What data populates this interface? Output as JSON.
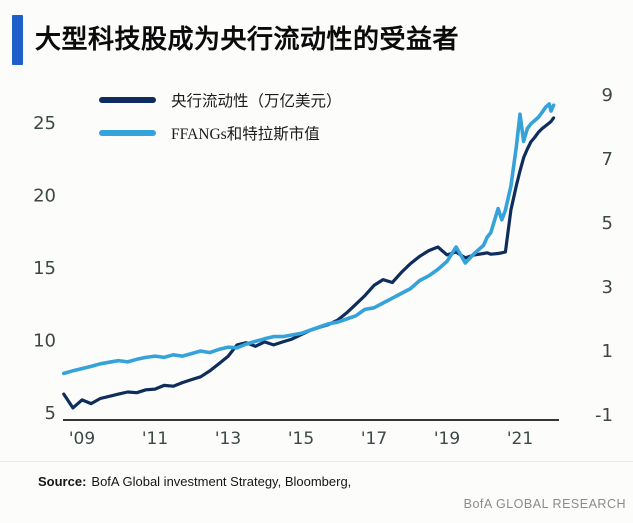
{
  "page": {
    "background": "#fcfcfb"
  },
  "title": {
    "text": "大型科技股成为央行流动性的受益者",
    "accent_color": "#1e5fc9"
  },
  "chart_data": {
    "type": "line",
    "title": "大型科技股成为央行流动性的受益者",
    "grid": false,
    "legend_position": "top-left",
    "axis_text_color": "#3c4847",
    "axis_line_color": "#1a1a1a",
    "x": [
      2008.5,
      2008.75,
      2009.0,
      2009.25,
      2009.5,
      2009.75,
      2010.0,
      2010.25,
      2010.5,
      2010.75,
      2011.0,
      2011.25,
      2011.5,
      2011.75,
      2012.0,
      2012.25,
      2012.5,
      2012.75,
      2013.0,
      2013.25,
      2013.5,
      2013.75,
      2014.0,
      2014.25,
      2014.5,
      2014.75,
      2015.0,
      2015.25,
      2015.5,
      2015.75,
      2016.0,
      2016.25,
      2016.5,
      2016.75,
      2017.0,
      2017.25,
      2017.5,
      2017.75,
      2018.0,
      2018.25,
      2018.5,
      2018.75,
      2019.0,
      2019.25,
      2019.5,
      2019.75,
      2020.0,
      2020.1,
      2020.2,
      2020.4,
      2020.5,
      2020.6,
      2020.75,
      2020.9,
      2021.0,
      2021.1,
      2021.2,
      2021.3,
      2021.4,
      2021.5,
      2021.6,
      2021.7,
      2021.8,
      2021.85,
      2021.92
    ],
    "series": [
      {
        "name": "央行流动性（万亿美元）",
        "axis": "left",
        "color": "#0f2d5c",
        "stroke_width": 3.2,
        "values": [
          6.3,
          5.35,
          5.9,
          5.65,
          6.0,
          6.15,
          6.3,
          6.45,
          6.4,
          6.6,
          6.65,
          6.9,
          6.85,
          7.1,
          7.3,
          7.5,
          7.9,
          8.4,
          8.9,
          9.7,
          9.85,
          9.6,
          9.9,
          9.7,
          9.9,
          10.1,
          10.4,
          10.7,
          10.9,
          11.1,
          11.4,
          11.9,
          12.5,
          13.1,
          13.8,
          14.2,
          14.0,
          14.7,
          15.3,
          15.8,
          16.2,
          16.45,
          15.9,
          16.1,
          15.7,
          15.9,
          16.0,
          16.05,
          15.95,
          16.0,
          16.05,
          16.1,
          19.0,
          20.7,
          21.7,
          22.6,
          23.2,
          23.7,
          24.0,
          24.35,
          24.6,
          24.8,
          25.0,
          25.1,
          25.35
        ]
      },
      {
        "name": "FFANGs和特拉斯市值",
        "axis": "right",
        "color": "#35a3da",
        "stroke_width": 3.6,
        "values": [
          0.3,
          0.38,
          0.45,
          0.52,
          0.6,
          0.65,
          0.7,
          0.66,
          0.74,
          0.8,
          0.84,
          0.8,
          0.88,
          0.84,
          0.92,
          1.0,
          0.95,
          1.05,
          1.12,
          1.1,
          1.22,
          1.3,
          1.38,
          1.45,
          1.45,
          1.5,
          1.55,
          1.65,
          1.75,
          1.85,
          1.9,
          2.0,
          2.1,
          2.3,
          2.35,
          2.5,
          2.65,
          2.8,
          2.95,
          3.2,
          3.35,
          3.55,
          3.8,
          4.25,
          3.75,
          4.05,
          4.3,
          4.55,
          4.7,
          5.45,
          5.1,
          5.4,
          6.15,
          7.4,
          8.4,
          7.55,
          7.95,
          8.1,
          8.2,
          8.3,
          8.45,
          8.62,
          8.72,
          8.5,
          8.68
        ]
      }
    ],
    "left_axis": {
      "ticks": [
        25,
        20,
        15,
        10,
        5
      ],
      "range_at_plot": [
        4.5,
        27.6
      ]
    },
    "right_axis": {
      "ticks": [
        9,
        7,
        5,
        3,
        1,
        -1
      ],
      "range_at_plot": [
        -1.16,
        9.31
      ]
    },
    "x_axis": {
      "tick_years": [
        2009,
        2011,
        2013,
        2015,
        2017,
        2019,
        2021
      ],
      "tick_labels": [
        "'09",
        "'11",
        "'13",
        "'15",
        "'17",
        "'19",
        "'21"
      ]
    }
  },
  "source": {
    "label": "Source:",
    "text": "BofA Global investment Strategy, Bloomberg,"
  },
  "watermark": "BofA GLOBAL RESEARCH"
}
